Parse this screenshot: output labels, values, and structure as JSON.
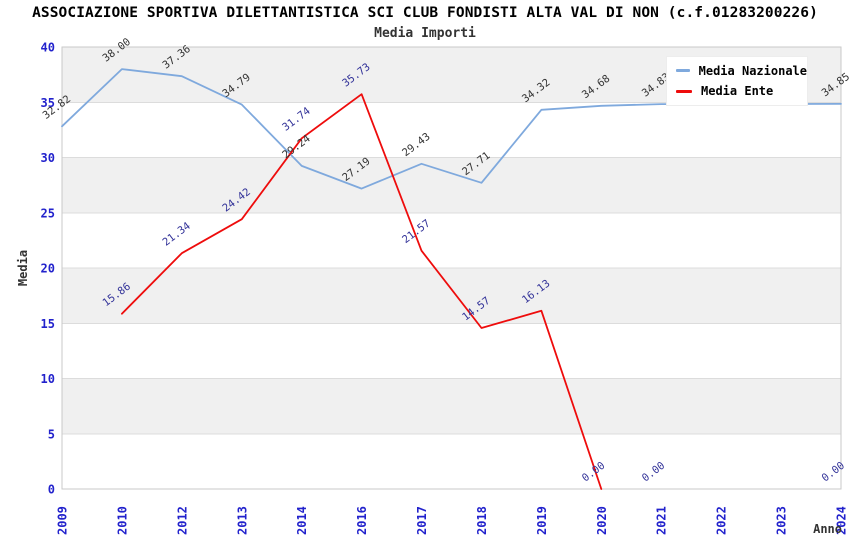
{
  "header": {
    "title": "ASSOCIAZIONE SPORTIVA DILETTANTISTICA SCI CLUB FONDISTI ALTA VAL DI NON (c.f.01283200226)",
    "subtitle": "Media Importi"
  },
  "legend": {
    "position": "top-right",
    "items": [
      {
        "label": "Media Nazionale",
        "color": "#7fa9dd"
      },
      {
        "label": "Media Ente",
        "color": "#ee0c0c"
      }
    ]
  },
  "chart_data": {
    "type": "line",
    "title": "Media Importi",
    "xlabel": "Anno",
    "ylabel": "Media",
    "ylim": [
      0,
      40
    ],
    "y_ticks": [
      0,
      5,
      10,
      15,
      20,
      25,
      30,
      35,
      40
    ],
    "grid": "horizontal-bands",
    "legend_position": "top-right",
    "band_colors": [
      "#ffffff",
      "#f0f0f0"
    ],
    "gridline_color": "#dcdcdc",
    "plot_border_color": "#c9c9c9",
    "tick_color": "#2222cc",
    "axis_title_color": "#333333",
    "categories": [
      "2009",
      "2010",
      "2012",
      "2013",
      "2014",
      "2016",
      "2017",
      "2018",
      "2019",
      "2020",
      "2021",
      "2022",
      "2023",
      "2024"
    ],
    "series": [
      {
        "name": "Media Nazionale",
        "color": "#7fa9dd",
        "label_color": "#333333",
        "values": [
          32.82,
          38.0,
          37.36,
          34.79,
          29.24,
          27.19,
          29.43,
          27.71,
          34.32,
          34.68,
          34.83,
          34.84,
          34.84,
          34.85
        ],
        "labels": [
          "32.82",
          "38.00",
          "37.36",
          "34.79",
          "29.24",
          "27.19",
          "29.43",
          "27.71",
          "34.32",
          "34.68",
          "34.83",
          "",
          "",
          "34.85"
        ],
        "segments": [
          [
            0,
            13
          ]
        ]
      },
      {
        "name": "Media Ente",
        "color": "#ee0c0c",
        "label_color": "#333399",
        "values": [
          null,
          15.86,
          21.34,
          24.42,
          31.74,
          35.73,
          21.57,
          14.57,
          16.13,
          0,
          0,
          null,
          null,
          0
        ],
        "labels": [
          "",
          "15.86",
          "21.34",
          "24.42",
          "31.74",
          "35.73",
          "21.57",
          "14.57",
          "16.13",
          "0.00",
          "0.00",
          "",
          "",
          "0.00"
        ],
        "segments": [
          [
            1,
            9
          ]
        ]
      }
    ]
  }
}
